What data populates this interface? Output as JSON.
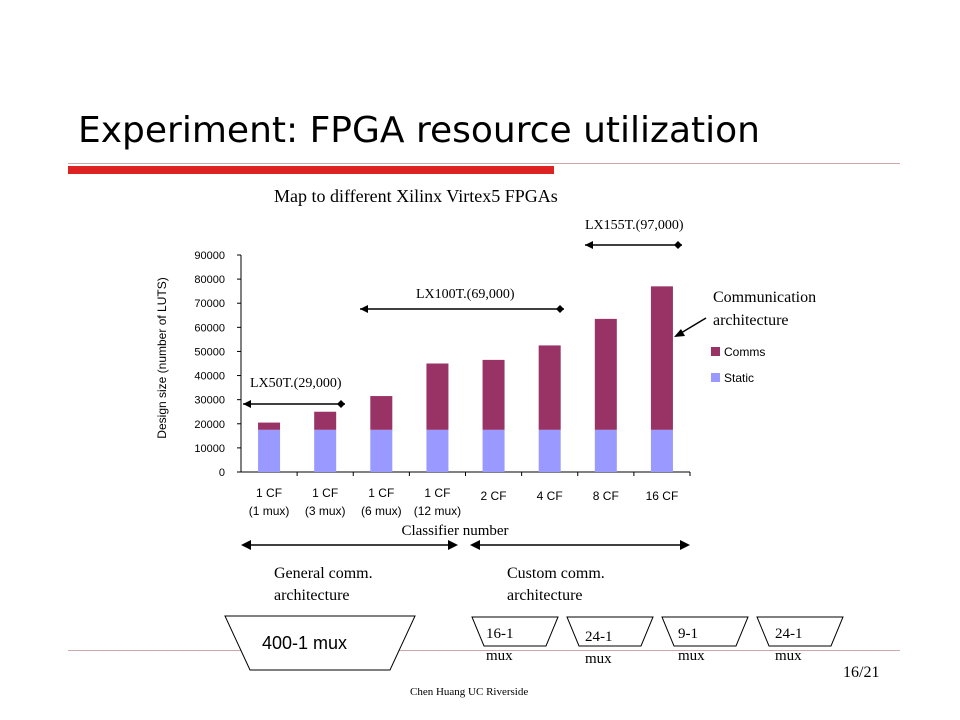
{
  "slide": {
    "title": "Experiment: FPGA resource utilization",
    "subtitle": "Map to different Xilinx Virtex5 FPGAs",
    "footer": "Chen Huang  UC Riverside",
    "page": "16/21"
  },
  "fpga_ranges": {
    "lx50t": "LX50T.(29,000)",
    "lx100t": "LX100T.(69,000)",
    "lx155t": "LX155T.(97,000)"
  },
  "annotations": {
    "comm_arch_line1": "Communication",
    "comm_arch_line2": "architecture",
    "general_line1": "General comm.",
    "general_line2": "architecture",
    "custom_line1": "Custom comm.",
    "custom_line2": "architecture"
  },
  "muxes": {
    "big": "400-1 mux",
    "m1_line1": "16-1",
    "m1_line2": "mux",
    "m2_line1": "24-1",
    "m2_line2": "mux",
    "m3_line1": "9-1",
    "m3_line2": "mux",
    "m4_line1": "24-1",
    "m4_line2": "mux"
  },
  "colors": {
    "accent_red": "#dd2222",
    "rule_gray": "#c9a9a9",
    "comms": "#993366",
    "static": "#9999ff"
  },
  "chart_data": {
    "type": "bar",
    "stacked": true,
    "categories": [
      [
        "1 CF",
        "(1 mux)"
      ],
      [
        "1 CF",
        "(3 mux)"
      ],
      [
        "1 CF",
        "(6 mux)"
      ],
      [
        "1 CF",
        "(12 mux)"
      ],
      [
        "2 CF"
      ],
      [
        "4 CF"
      ],
      [
        "8 CF"
      ],
      [
        "16 CF"
      ]
    ],
    "series": [
      {
        "name": "Static",
        "values": [
          17500,
          17500,
          17500,
          17500,
          17500,
          17500,
          17500,
          17500
        ]
      },
      {
        "name": "Comms",
        "values": [
          3000,
          7500,
          14000,
          27500,
          29000,
          35000,
          46000,
          59500
        ]
      }
    ],
    "xlabel": "Classifier number",
    "ylabel": "Design size (number of LUTS)",
    "ylim": [
      0,
      90000
    ],
    "yticks": [
      0,
      10000,
      20000,
      30000,
      40000,
      50000,
      60000,
      70000,
      80000,
      90000
    ],
    "legend": [
      "Comms",
      "Static"
    ],
    "legend_position": "right",
    "grid": false
  }
}
